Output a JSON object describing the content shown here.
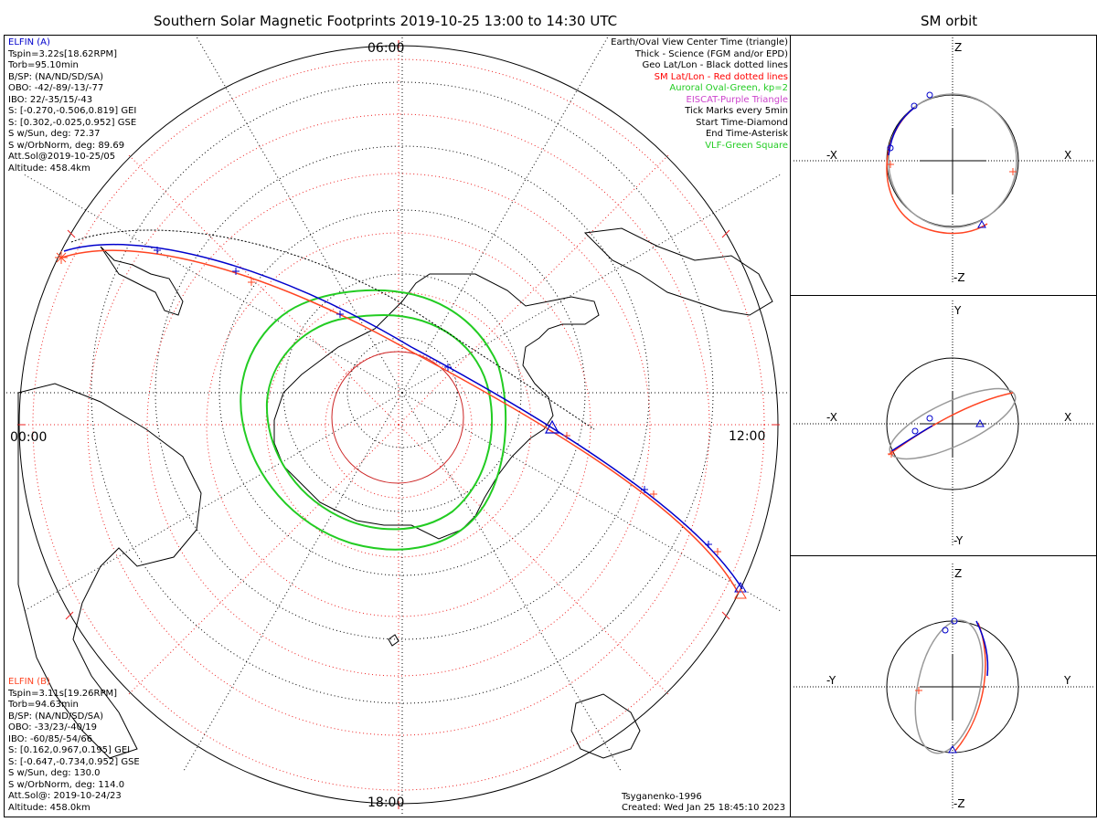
{
  "title": "Southern Solar Magnetic Footprints 2019-10-25 13:00 to 14:30 UTC",
  "orbit_title": "SM orbit",
  "clock_labels": {
    "top": "06:00",
    "left": "00:00",
    "right": "12:00",
    "bottom": "18:00"
  },
  "elfin_a": {
    "name": "ELFIN (A)",
    "color": "#0000cc",
    "lines": [
      "Tspin=3.22s[18.62RPM]",
      "Torb=95.10min",
      "B/SP: (NA/ND/SD/SA)",
      "OBO: -42/-89/-13/-77",
      "IBO: 22/-35/15/-43",
      "S: [-0.270,-0.506,0.819] GEI",
      "S: [0.302,-0.025,0.952] GSE",
      "S w/Sun, deg: 72.37",
      "S w/OrbNorm, deg: 89.69",
      "Att.Sol@2019-10-25/05",
      "Altitude: 458.4km"
    ]
  },
  "elfin_b": {
    "name": "ELFIN (B)",
    "color": "#ff4422",
    "lines": [
      "Tspin=3.11s[19.26RPM]",
      "Torb=94.63min",
      "B/SP: (NA/ND/SD/SA)",
      "OBO: -33/23/-40/19",
      "IBO: -60/85/-54/66",
      "S: [0.162,0.967,0.195] GEI",
      "S: [-0.647,-0.734,0.952] GSE",
      "S w/Sun, deg: 130.0",
      "S w/OrbNorm, deg: 114.0",
      "Att.Sol@: 2019-10-24/23",
      "Altitude: 458.0km"
    ]
  },
  "legend": [
    {
      "text": "Earth/Oval View Center Time (triangle)",
      "color": "#000000"
    },
    {
      "text": "Thick - Science (FGM and/or EPD)",
      "color": "#000000"
    },
    {
      "text": "Geo Lat/Lon - Black dotted lines",
      "color": "#000000"
    },
    {
      "text": "SM Lat/Lon - Red dotted lines",
      "color": "#ff0000"
    },
    {
      "text": "Auroral Oval-Green, kp=2",
      "color": "#22cc22"
    },
    {
      "text": "EISCAT-Purple Triangle",
      "color": "#cc44cc"
    },
    {
      "text": "Tick Marks every 5min",
      "color": "#000000"
    },
    {
      "text": "Start Time-Diamond",
      "color": "#000000"
    },
    {
      "text": "End Time-Asterisk",
      "color": "#000000"
    },
    {
      "text": "VLF-Green Square",
      "color": "#22cc22"
    }
  ],
  "footer": {
    "model": "Tsyganenko-1996",
    "created": "Created: Wed Jan 25 18:45:10 2023"
  },
  "orbit_panels": [
    {
      "top": "Z",
      "bottom": "-Z",
      "left": "-X",
      "right": "X"
    },
    {
      "top": "Y",
      "bottom": "-Y",
      "left": "-X",
      "right": "X"
    },
    {
      "top": "Z",
      "bottom": "-Z",
      "left": "-Y",
      "right": "Y"
    }
  ]
}
